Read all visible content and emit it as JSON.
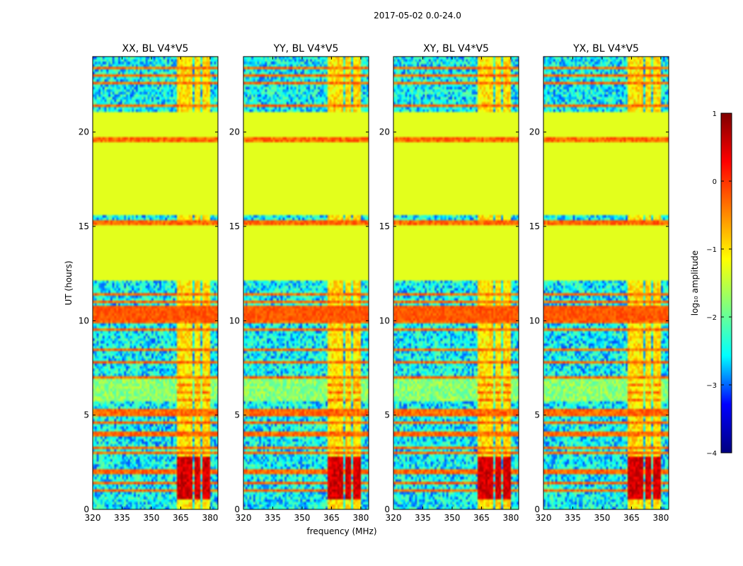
{
  "chart_data": {
    "type": "heatmap",
    "suptitle": "2017-05-02 0.0-24.0",
    "xlabel": "frequency (MHz)",
    "ylabel": "UT (hours)",
    "xlim": [
      320,
      384
    ],
    "ylim": [
      0,
      24
    ],
    "xticks": [
      320,
      335,
      350,
      365,
      380
    ],
    "yticks": [
      0,
      5,
      10,
      15,
      20
    ],
    "panels": [
      {
        "title": "XX, BL V4*V5"
      },
      {
        "title": "YY, BL V4*V5"
      },
      {
        "title": "XY, BL V4*V5"
      },
      {
        "title": "YX, BL V4*V5"
      }
    ],
    "colorbar": {
      "label": "log₁₀ amplitude",
      "range": [
        -4,
        1
      ],
      "ticks": [
        "1",
        "0",
        "−1",
        "−2",
        "−3",
        "−4"
      ],
      "colormap": "jet",
      "colormap_stops": [
        "#00007f",
        "#0000ff",
        "#00ffff",
        "#7fff7f",
        "#ffff00",
        "#ff7f00",
        "#ff0000",
        "#7f0000"
      ]
    },
    "flagged_value": -1.3,
    "flagged_color": "#99ff55",
    "flagged_ut_ranges": [
      [
        12.2,
        15.0
      ],
      [
        15.6,
        19.4
      ],
      [
        19.8,
        21.0
      ]
    ],
    "rfi_bands_mhz": [
      [
        363.5,
        367.5
      ],
      [
        368.5,
        371
      ],
      [
        372,
        374.5
      ],
      [
        376,
        376.8
      ],
      [
        377.5,
        380
      ]
    ],
    "quiet_level": -2.5,
    "rfi_level": -1.0,
    "strong_rfi_ut_range": [
      0.5,
      2.8
    ],
    "strong_rfi_level": 0.4,
    "horizontal_rfi_ut": [
      1.0,
      1.4,
      2.0,
      3.0,
      3.3,
      4.0,
      4.6,
      5.0,
      5.2,
      5.8,
      6.2,
      6.6,
      7.0,
      7.8,
      8.5,
      9.5,
      10.0,
      10.2,
      10.6,
      11.0,
      11.4,
      15.2,
      19.6,
      21.4,
      22.6,
      23.0,
      23.4
    ]
  }
}
